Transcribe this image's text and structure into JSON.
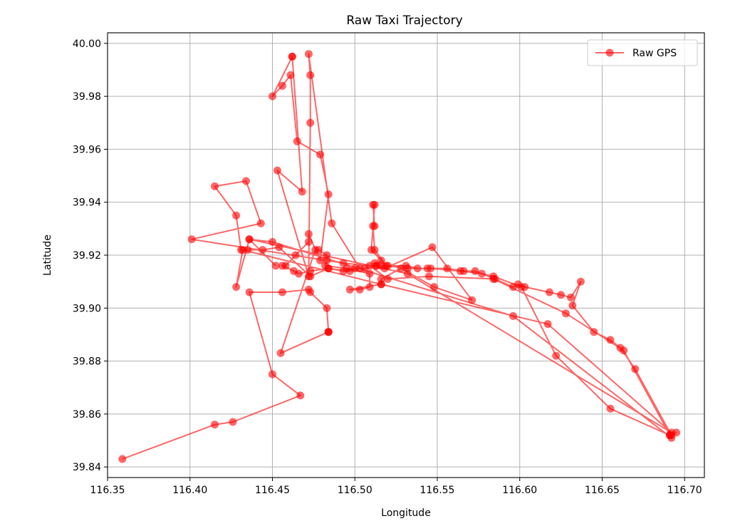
{
  "chart_data": {
    "type": "line",
    "title": "Raw Taxi Trajectory",
    "xlabel": "Longitude",
    "ylabel": "Latitude",
    "xlim": [
      116.35,
      116.712
    ],
    "ylim": [
      39.836,
      40.004
    ],
    "xticks": [
      "116.35",
      "116.40",
      "116.45",
      "116.50",
      "116.55",
      "116.60",
      "116.65",
      "116.70"
    ],
    "yticks": [
      "39.84",
      "39.86",
      "39.88",
      "39.90",
      "39.92",
      "39.94",
      "39.96",
      "39.98",
      "40.00"
    ],
    "grid": true,
    "legend_position": "top-right",
    "series": [
      {
        "name": "Raw GPS",
        "color": "#ff0000",
        "marker": "circle",
        "points": [
          [
            116.359,
            39.843
          ],
          [
            116.415,
            39.856
          ],
          [
            116.426,
            39.857
          ],
          [
            116.467,
            39.867
          ],
          [
            116.45,
            39.875
          ],
          [
            116.436,
            39.906
          ],
          [
            116.456,
            39.906
          ],
          [
            116.472,
            39.907
          ],
          [
            116.473,
            39.906
          ],
          [
            116.483,
            39.9
          ],
          [
            116.484,
            39.891
          ],
          [
            116.484,
            39.891
          ],
          [
            116.484,
            39.891
          ],
          [
            116.455,
            39.883
          ],
          [
            116.476,
            39.922
          ],
          [
            116.478,
            39.922
          ],
          [
            116.483,
            39.92
          ],
          [
            116.483,
            39.918
          ],
          [
            116.482,
            39.916
          ],
          [
            116.495,
            39.915
          ],
          [
            116.509,
            39.913
          ],
          [
            116.509,
            39.908
          ],
          [
            116.503,
            39.907
          ],
          [
            116.497,
            39.907
          ],
          [
            116.516,
            39.909
          ],
          [
            116.516,
            39.911
          ],
          [
            116.528,
            39.915
          ],
          [
            116.548,
            39.908
          ],
          [
            116.571,
            39.903
          ],
          [
            116.547,
            39.923
          ],
          [
            116.518,
            39.915
          ],
          [
            116.513,
            39.916
          ],
          [
            116.512,
            39.917
          ],
          [
            116.516,
            39.916
          ],
          [
            116.52,
            39.916
          ],
          [
            116.531,
            39.916
          ],
          [
            116.538,
            39.915
          ],
          [
            116.544,
            39.915
          ],
          [
            116.556,
            39.915
          ],
          [
            116.566,
            39.914
          ],
          [
            116.573,
            39.914
          ],
          [
            116.585,
            39.911
          ],
          [
            116.596,
            39.908
          ],
          [
            116.599,
            39.909
          ],
          [
            116.603,
            39.908
          ],
          [
            116.618,
            39.906
          ],
          [
            116.625,
            39.905
          ],
          [
            116.631,
            39.904
          ],
          [
            116.637,
            39.91
          ],
          [
            116.632,
            39.901
          ],
          [
            116.645,
            39.891
          ],
          [
            116.655,
            39.888
          ],
          [
            116.661,
            39.885
          ],
          [
            116.67,
            39.877
          ],
          [
            116.692,
            39.852
          ],
          [
            116.695,
            39.853
          ],
          [
            116.691,
            39.852
          ],
          [
            116.691,
            39.852
          ],
          [
            116.655,
            39.862
          ],
          [
            116.622,
            39.882
          ],
          [
            116.601,
            39.908
          ],
          [
            116.584,
            39.912
          ],
          [
            116.577,
            39.913
          ],
          [
            116.564,
            39.914
          ],
          [
            116.546,
            39.915
          ],
          [
            116.532,
            39.915
          ],
          [
            116.519,
            39.916
          ],
          [
            116.512,
            39.922
          ],
          [
            116.511,
            39.931
          ],
          [
            116.512,
            39.931
          ],
          [
            116.511,
            39.939
          ],
          [
            116.512,
            39.939
          ],
          [
            116.51,
            39.922
          ],
          [
            116.516,
            39.918
          ],
          [
            116.513,
            39.916
          ],
          [
            116.506,
            39.915
          ],
          [
            116.5,
            39.915
          ],
          [
            116.493,
            39.914
          ],
          [
            116.484,
            39.915
          ],
          [
            116.473,
            39.914
          ],
          [
            116.466,
            39.913
          ],
          [
            116.463,
            39.914
          ],
          [
            116.456,
            39.916
          ],
          [
            116.458,
            39.916
          ],
          [
            116.464,
            39.92
          ],
          [
            116.472,
            39.925
          ],
          [
            116.472,
            39.928
          ],
          [
            116.479,
            39.918
          ],
          [
            116.484,
            39.943
          ],
          [
            116.479,
            39.958
          ],
          [
            116.465,
            39.963
          ],
          [
            116.461,
            39.988
          ],
          [
            116.456,
            39.984
          ],
          [
            116.45,
            39.98
          ],
          [
            116.462,
            39.995
          ],
          [
            116.462,
            39.995
          ],
          [
            116.468,
            39.944
          ],
          [
            116.453,
            39.952
          ],
          [
            116.472,
            39.912
          ],
          [
            116.473,
            39.97
          ],
          [
            116.473,
            39.988
          ],
          [
            116.472,
            39.996
          ],
          [
            116.486,
            39.932
          ],
          [
            116.503,
            39.915
          ],
          [
            116.497,
            39.914
          ],
          [
            116.484,
            39.915
          ],
          [
            116.473,
            39.912
          ],
          [
            116.454,
            39.923
          ],
          [
            116.444,
            39.922
          ],
          [
            116.435,
            39.922
          ],
          [
            116.431,
            39.922
          ],
          [
            116.428,
            39.935
          ],
          [
            116.415,
            39.946
          ],
          [
            116.434,
            39.948
          ],
          [
            116.443,
            39.932
          ],
          [
            116.401,
            39.926
          ],
          [
            116.493,
            39.917
          ],
          [
            116.509,
            39.916
          ],
          [
            116.52,
            39.911
          ],
          [
            116.545,
            39.912
          ],
          [
            116.584,
            39.911
          ],
          [
            116.628,
            39.898
          ],
          [
            116.663,
            39.884
          ],
          [
            116.692,
            39.851
          ],
          [
            116.596,
            39.897
          ],
          [
            116.45,
            39.925
          ],
          [
            116.436,
            39.926
          ],
          [
            116.428,
            39.908
          ],
          [
            116.432,
            39.922
          ],
          [
            116.516,
            39.909
          ],
          [
            116.617,
            39.894
          ],
          [
            116.692,
            39.853
          ],
          [
            116.532,
            39.913
          ],
          [
            116.436,
            39.926
          ],
          [
            116.452,
            39.916
          ]
        ]
      }
    ]
  }
}
